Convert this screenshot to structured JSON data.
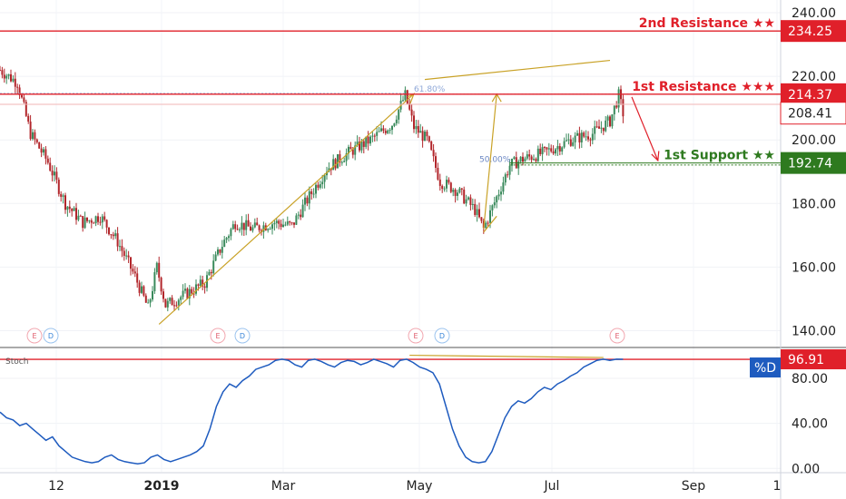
{
  "chart_data": [
    {
      "type": "candlestick",
      "ylim": [
        135,
        244
      ],
      "y_ticks": [
        "240.00",
        "220.00",
        "200.00",
        "180.00",
        "160.00",
        "140.00"
      ],
      "y_tick_values": [
        240,
        220,
        200,
        180,
        160,
        140
      ],
      "x_ticks": [
        "12",
        "2019",
        "Mar",
        "May",
        "Jul",
        "Sep",
        "1"
      ],
      "price_path": [
        {
          "t": 0,
          "v": 222
        },
        {
          "t": 4,
          "v": 220
        },
        {
          "t": 8,
          "v": 218
        },
        {
          "t": 14,
          "v": 202
        },
        {
          "t": 22,
          "v": 193
        },
        {
          "t": 30,
          "v": 180
        },
        {
          "t": 38,
          "v": 174
        },
        {
          "t": 46,
          "v": 176
        },
        {
          "t": 54,
          "v": 168
        },
        {
          "t": 62,
          "v": 157
        },
        {
          "t": 68,
          "v": 147
        },
        {
          "t": 72,
          "v": 160
        },
        {
          "t": 76,
          "v": 148
        },
        {
          "t": 84,
          "v": 151
        },
        {
          "t": 94,
          "v": 155
        },
        {
          "t": 102,
          "v": 167
        },
        {
          "t": 108,
          "v": 174
        },
        {
          "t": 116,
          "v": 172
        },
        {
          "t": 126,
          "v": 174
        },
        {
          "t": 134,
          "v": 173
        },
        {
          "t": 140,
          "v": 180
        },
        {
          "t": 150,
          "v": 191
        },
        {
          "t": 160,
          "v": 196
        },
        {
          "t": 170,
          "v": 200
        },
        {
          "t": 180,
          "v": 205
        },
        {
          "t": 186,
          "v": 214
        },
        {
          "t": 190,
          "v": 204
        },
        {
          "t": 196,
          "v": 200
        },
        {
          "t": 202,
          "v": 187
        },
        {
          "t": 210,
          "v": 184
        },
        {
          "t": 218,
          "v": 178
        },
        {
          "t": 222,
          "v": 172
        },
        {
          "t": 228,
          "v": 182
        },
        {
          "t": 234,
          "v": 192
        },
        {
          "t": 240,
          "v": 194
        },
        {
          "t": 250,
          "v": 196
        },
        {
          "t": 262,
          "v": 200
        },
        {
          "t": 272,
          "v": 202
        },
        {
          "t": 280,
          "v": 206
        },
        {
          "t": 284,
          "v": 214
        },
        {
          "t": 286,
          "v": 208.41
        }
      ],
      "current_price": "208.41",
      "levels": [
        {
          "label": "2nd Resistance ★★",
          "value": "234.25",
          "color": "#e0202a"
        },
        {
          "label": "1st Resistance ★★★",
          "value": "214.37",
          "color": "#e0202a"
        },
        {
          "label": "1st Support ★★",
          "value": "192.74",
          "color": "#2e7a1f"
        }
      ],
      "fib_labels": [
        "61.80%",
        "50.00%"
      ],
      "event_markers": [
        "E",
        "D",
        "E",
        "D",
        "E",
        "D",
        "E"
      ]
    },
    {
      "type": "line",
      "name": "Stoch",
      "series_label": "%D",
      "current_value": "96.91",
      "ylim": [
        -3,
        105
      ],
      "y_ticks": [
        "80.00",
        "40.00",
        "0.00"
      ],
      "y_tick_values": [
        80,
        40,
        0
      ],
      "values": [
        50,
        45,
        43,
        38,
        40,
        35,
        30,
        25,
        28,
        20,
        15,
        10,
        8,
        6,
        5,
        6,
        10,
        12,
        8,
        6,
        5,
        4,
        5,
        10,
        12,
        8,
        6,
        8,
        10,
        12,
        15,
        20,
        35,
        55,
        68,
        75,
        72,
        78,
        82,
        88,
        90,
        92,
        96,
        97,
        96,
        92,
        90,
        96,
        97,
        95,
        92,
        90,
        94,
        96,
        95,
        92,
        94,
        97,
        95,
        93,
        90,
        96,
        97,
        94,
        90,
        88,
        85,
        75,
        55,
        35,
        20,
        10,
        6,
        5,
        6,
        15,
        30,
        45,
        55,
        60,
        58,
        62,
        68,
        72,
        70,
        75,
        78,
        82,
        85,
        90,
        93,
        96,
        97,
        96,
        97,
        96.91
      ]
    }
  ]
}
